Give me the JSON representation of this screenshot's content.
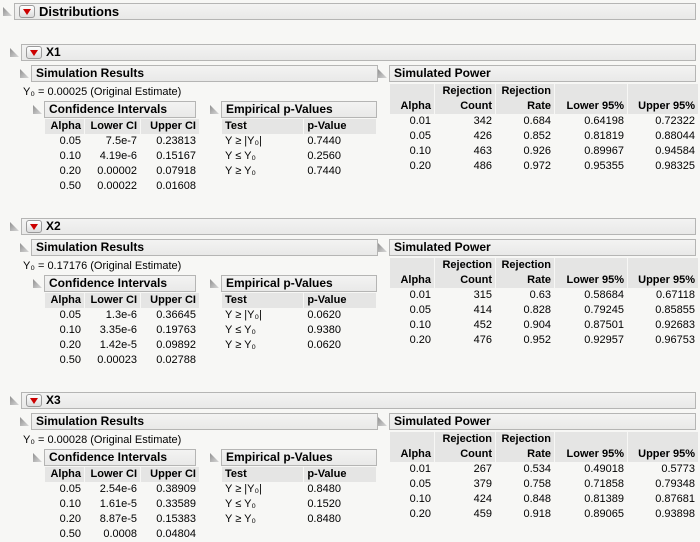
{
  "colors": {
    "accent_red": "#cc0000",
    "background": "#f7f7f5",
    "bar_border": "#b5b5b4",
    "header_cell_bg": "#e5e5e4"
  },
  "icons": {
    "disclosure": "open-disclosure-triangle",
    "menu": "red-triangle-dropdown"
  },
  "root": {
    "title": "Distributions"
  },
  "sections": [
    {
      "title": "X1",
      "simulation_results_title": "Simulation Results",
      "estimate_line": "Y₀ = 0.00025 (Original Estimate)",
      "confidence_intervals": {
        "title": "Confidence Intervals",
        "headers": [
          "Alpha",
          "Lower CI",
          "Upper CI"
        ],
        "rows": [
          [
            "0.05",
            "7.5e-7",
            "0.23813"
          ],
          [
            "0.10",
            "4.19e-6",
            "0.15167"
          ],
          [
            "0.20",
            "0.00002",
            "0.07918"
          ],
          [
            "0.50",
            "0.00022",
            "0.01608"
          ]
        ]
      },
      "empirical_p_values": {
        "title": "Empirical p-Values",
        "headers": [
          "Test",
          "p-Value"
        ],
        "rows": [
          [
            "Y ≥ |Y₀|",
            "0.7440"
          ],
          [
            "Y ≤ Y₀",
            "0.2560"
          ],
          [
            "Y ≥ Y₀",
            "0.7440"
          ]
        ]
      },
      "simulated_power": {
        "title": "Simulated Power",
        "headers": [
          "Alpha",
          "Rejection\nCount",
          "Rejection\nRate",
          "Lower 95%",
          "Upper 95%"
        ],
        "rows": [
          [
            "0.01",
            "342",
            "0.684",
            "0.64198",
            "0.72322"
          ],
          [
            "0.05",
            "426",
            "0.852",
            "0.81819",
            "0.88044"
          ],
          [
            "0.10",
            "463",
            "0.926",
            "0.89967",
            "0.94584"
          ],
          [
            "0.20",
            "486",
            "0.972",
            "0.95355",
            "0.98325"
          ]
        ]
      }
    },
    {
      "title": "X2",
      "simulation_results_title": "Simulation Results",
      "estimate_line": "Y₀ = 0.17176 (Original Estimate)",
      "confidence_intervals": {
        "title": "Confidence Intervals",
        "headers": [
          "Alpha",
          "Lower CI",
          "Upper CI"
        ],
        "rows": [
          [
            "0.05",
            "1.3e-6",
            "0.36645"
          ],
          [
            "0.10",
            "3.35e-6",
            "0.19763"
          ],
          [
            "0.20",
            "1.42e-5",
            "0.09892"
          ],
          [
            "0.50",
            "0.00023",
            "0.02788"
          ]
        ]
      },
      "empirical_p_values": {
        "title": "Empirical p-Values",
        "headers": [
          "Test",
          "p-Value"
        ],
        "rows": [
          [
            "Y ≥ |Y₀|",
            "0.0620"
          ],
          [
            "Y ≤ Y₀",
            "0.9380"
          ],
          [
            "Y ≥ Y₀",
            "0.0620"
          ]
        ]
      },
      "simulated_power": {
        "title": "Simulated Power",
        "headers": [
          "Alpha",
          "Rejection\nCount",
          "Rejection\nRate",
          "Lower 95%",
          "Upper 95%"
        ],
        "rows": [
          [
            "0.01",
            "315",
            "0.63",
            "0.58684",
            "0.67118"
          ],
          [
            "0.05",
            "414",
            "0.828",
            "0.79245",
            "0.85855"
          ],
          [
            "0.10",
            "452",
            "0.904",
            "0.87501",
            "0.92683"
          ],
          [
            "0.20",
            "476",
            "0.952",
            "0.92957",
            "0.96753"
          ]
        ]
      }
    },
    {
      "title": "X3",
      "simulation_results_title": "Simulation Results",
      "estimate_line": "Y₀ = 0.00028 (Original Estimate)",
      "confidence_intervals": {
        "title": "Confidence Intervals",
        "headers": [
          "Alpha",
          "Lower CI",
          "Upper CI"
        ],
        "rows": [
          [
            "0.05",
            "2.54e-6",
            "0.38909"
          ],
          [
            "0.10",
            "1.61e-5",
            "0.33589"
          ],
          [
            "0.20",
            "8.87e-5",
            "0.15383"
          ],
          [
            "0.50",
            "0.0008",
            "0.04804"
          ]
        ]
      },
      "empirical_p_values": {
        "title": "Empirical p-Values",
        "headers": [
          "Test",
          "p-Value"
        ],
        "rows": [
          [
            "Y ≥ |Y₀|",
            "0.8480"
          ],
          [
            "Y ≤ Y₀",
            "0.1520"
          ],
          [
            "Y ≥ Y₀",
            "0.8480"
          ]
        ]
      },
      "simulated_power": {
        "title": "Simulated Power",
        "headers": [
          "Alpha",
          "Rejection\nCount",
          "Rejection\nRate",
          "Lower 95%",
          "Upper 95%"
        ],
        "rows": [
          [
            "0.01",
            "267",
            "0.534",
            "0.49018",
            "0.5773"
          ],
          [
            "0.05",
            "379",
            "0.758",
            "0.71858",
            "0.79348"
          ],
          [
            "0.10",
            "424",
            "0.848",
            "0.81389",
            "0.87681"
          ],
          [
            "0.20",
            "459",
            "0.918",
            "0.89065",
            "0.93898"
          ]
        ]
      }
    }
  ]
}
